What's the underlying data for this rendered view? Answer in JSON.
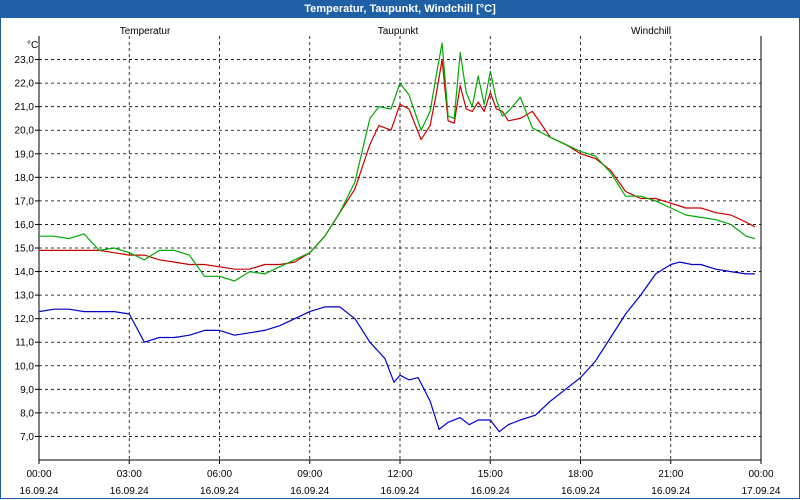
{
  "window": {
    "title": "Temperatur, Taupunkt, Windchill [°C]"
  },
  "chart_data": {
    "type": "line",
    "title": "Temperatur, Taupunkt, Windchill [°C]",
    "ylabel": "°C",
    "ylim": [
      6.0,
      24.0
    ],
    "xlim": [
      0,
      24
    ],
    "grid": true,
    "y_ticks": [
      "7,0",
      "8,0",
      "9,0",
      "10,0",
      "11,0",
      "12,0",
      "13,0",
      "14,0",
      "15,0",
      "16,0",
      "17,0",
      "18,0",
      "19,0",
      "20,0",
      "21,0",
      "22,0",
      "23,0"
    ],
    "x_ticks": [
      {
        "time": "00:00",
        "date": "16.09.24"
      },
      {
        "time": "03:00",
        "date": "16.09.24"
      },
      {
        "time": "06:00",
        "date": "16.09.24"
      },
      {
        "time": "09:00",
        "date": "16.09.24"
      },
      {
        "time": "12:00",
        "date": "16.09.24"
      },
      {
        "time": "15:00",
        "date": "16.09.24"
      },
      {
        "time": "18:00",
        "date": "16.09.24"
      },
      {
        "time": "21:00",
        "date": "16.09.24"
      },
      {
        "time": "00:00",
        "date": "17.09.24"
      }
    ],
    "series": [
      {
        "name": "Temperatur",
        "color": "#cc0000",
        "x": [
          0,
          0.5,
          1,
          1.5,
          2,
          2.5,
          3,
          3.5,
          4,
          4.5,
          5,
          5.5,
          6,
          6.5,
          7,
          7.5,
          8,
          8.5,
          9,
          9.5,
          10,
          10.5,
          11,
          11.3,
          11.7,
          12,
          12.3,
          12.7,
          13,
          13.2,
          13.4,
          13.6,
          13.8,
          14,
          14.2,
          14.4,
          14.6,
          14.8,
          15,
          15.2,
          15.4,
          15.6,
          16,
          16.4,
          17,
          17.5,
          18,
          18.5,
          19,
          19.5,
          20,
          20.5,
          21,
          21.5,
          22,
          22.5,
          23,
          23.5,
          23.8
        ],
        "values": [
          14.9,
          14.9,
          14.9,
          14.9,
          14.9,
          14.8,
          14.7,
          14.7,
          14.5,
          14.4,
          14.3,
          14.3,
          14.2,
          14.1,
          14.1,
          14.3,
          14.3,
          14.4,
          14.8,
          15.5,
          16.5,
          17.5,
          19.4,
          20.2,
          20.0,
          21.1,
          20.9,
          19.6,
          20.2,
          21.5,
          23.0,
          20.4,
          20.3,
          21.9,
          20.9,
          20.8,
          21.2,
          20.8,
          21.6,
          20.9,
          20.8,
          20.4,
          20.5,
          20.8,
          19.7,
          19.4,
          19.0,
          18.8,
          18.3,
          17.4,
          17.1,
          17.1,
          16.9,
          16.7,
          16.7,
          16.5,
          16.4,
          16.1,
          15.9
        ]
      },
      {
        "name": "Taupunkt",
        "color": "#0000cc",
        "x": [
          0,
          0.5,
          1,
          1.5,
          2,
          2.5,
          3,
          3.5,
          4,
          4.5,
          5,
          5.5,
          6,
          6.5,
          7,
          7.5,
          8,
          8.5,
          9,
          9.5,
          10,
          10.5,
          11,
          11.5,
          11.8,
          12,
          12.3,
          12.6,
          13,
          13.3,
          13.6,
          14,
          14.3,
          14.6,
          15,
          15.3,
          15.6,
          16,
          16.5,
          17,
          17.5,
          18,
          18.5,
          19,
          19.5,
          20,
          20.5,
          21,
          21.3,
          21.7,
          22,
          22.5,
          23,
          23.5,
          23.8
        ],
        "values": [
          12.3,
          12.4,
          12.4,
          12.3,
          12.3,
          12.3,
          12.2,
          11.0,
          11.2,
          11.2,
          11.3,
          11.5,
          11.5,
          11.3,
          11.4,
          11.5,
          11.7,
          12.0,
          12.3,
          12.5,
          12.5,
          12.0,
          11.0,
          10.3,
          9.3,
          9.6,
          9.4,
          9.5,
          8.5,
          7.3,
          7.6,
          7.8,
          7.5,
          7.7,
          7.7,
          7.2,
          7.5,
          7.7,
          7.9,
          8.5,
          9.0,
          9.5,
          10.2,
          11.2,
          12.2,
          13.0,
          13.9,
          14.3,
          14.4,
          14.3,
          14.3,
          14.1,
          14.0,
          13.9,
          13.9
        ]
      },
      {
        "name": "Windchill",
        "color": "#00aa00",
        "x": [
          0,
          0.5,
          1,
          1.5,
          2,
          2.5,
          3,
          3.5,
          4,
          4.5,
          5,
          5.5,
          6,
          6.5,
          7,
          7.5,
          8,
          8.5,
          9,
          9.5,
          10,
          10.5,
          11,
          11.3,
          11.7,
          12,
          12.3,
          12.7,
          13,
          13.2,
          13.4,
          13.6,
          13.8,
          14,
          14.2,
          14.4,
          14.6,
          14.8,
          15,
          15.2,
          15.4,
          15.6,
          16,
          16.4,
          17,
          17.5,
          18,
          18.5,
          19,
          19.5,
          20,
          20.5,
          21,
          21.5,
          22,
          22.5,
          23,
          23.5,
          23.8
        ],
        "values": [
          15.5,
          15.5,
          15.4,
          15.6,
          14.9,
          15.0,
          14.8,
          14.5,
          14.9,
          14.9,
          14.7,
          13.8,
          13.8,
          13.6,
          14.0,
          13.9,
          14.2,
          14.5,
          14.8,
          15.5,
          16.5,
          17.8,
          20.5,
          21.0,
          20.9,
          22.0,
          21.5,
          20.0,
          20.8,
          22.3,
          23.7,
          20.6,
          20.5,
          23.3,
          21.6,
          21.0,
          22.3,
          21.1,
          22.5,
          21.3,
          20.6,
          20.8,
          21.4,
          20.1,
          19.7,
          19.4,
          19.1,
          18.9,
          18.2,
          17.2,
          17.2,
          17.0,
          16.7,
          16.4,
          16.3,
          16.2,
          16.0,
          15.5,
          15.4
        ]
      }
    ]
  }
}
